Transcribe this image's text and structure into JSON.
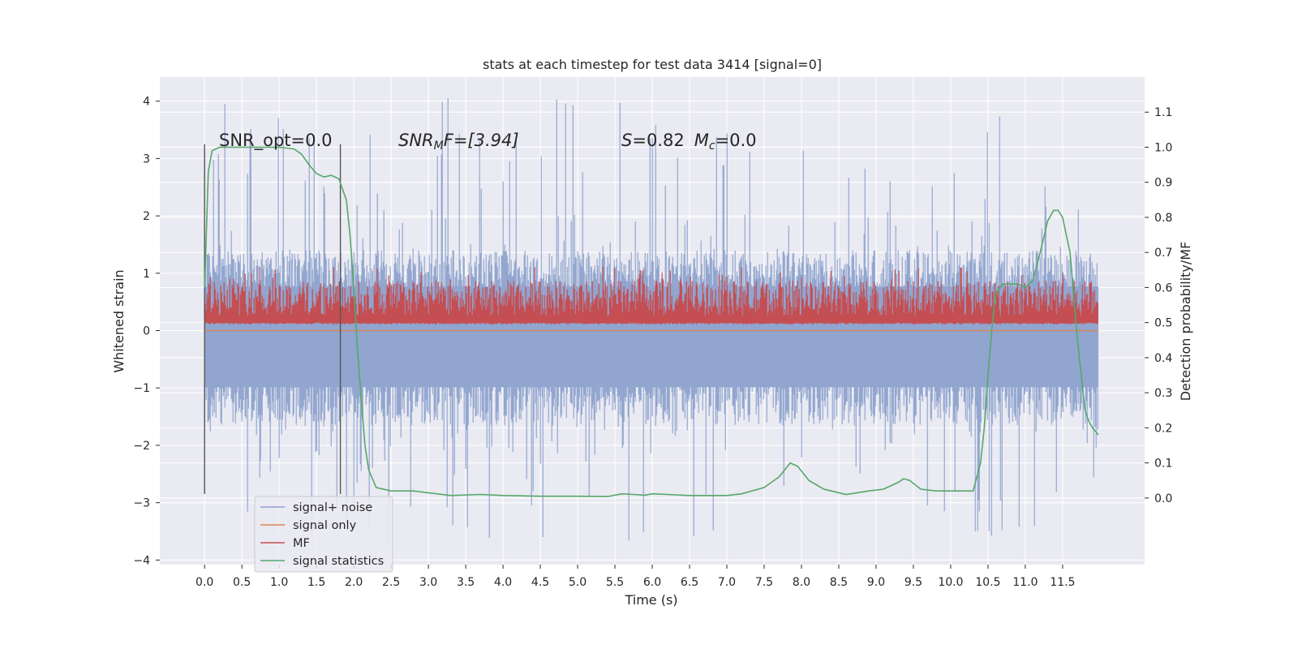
{
  "chart_data": {
    "type": "line",
    "title": "stats at each timestep for test data 3414 [signal=0]",
    "xlabel": "Time (s)",
    "ylabel_left": "Whitened strain",
    "ylabel_right": "Detection probability/MF",
    "xlim": [
      -0.6,
      12.6
    ],
    "ylim_left": [
      -4.08,
      4.42
    ],
    "ylim_right": [
      -0.19,
      1.2
    ],
    "x_ticks": [
      "0.0",
      "0.5",
      "1.0",
      "1.5",
      "2.0",
      "2.5",
      "3.0",
      "3.5",
      "4.0",
      "4.5",
      "5.0",
      "5.5",
      "6.0",
      "6.5",
      "7.0",
      "7.5",
      "8.0",
      "8.5",
      "9.0",
      "9.5",
      "10.0",
      "10.5",
      "11.0",
      "11.5"
    ],
    "y_ticks_left": [
      "−4",
      "−3",
      "−2",
      "−1",
      "0",
      "1",
      "2",
      "3",
      "4"
    ],
    "y_ticks_right": [
      "0.0",
      "0.1",
      "0.2",
      "0.3",
      "0.4",
      "0.5",
      "0.6",
      "0.7",
      "0.8",
      "0.9",
      "1.0",
      "1.1"
    ],
    "grid": true,
    "legend_position": "lower-left",
    "annotations": {
      "snr_opt": "SNR_opt=0.0",
      "snr_mf_prefix": "SNR",
      "snr_mf_sub": "M",
      "snr_mf_suffix": "F=[3.94]",
      "s_label": "S",
      "s_value": "=0.82",
      "mc_label": "M",
      "mc_sub": "c",
      "mc_value": "=0.0"
    },
    "vertical_lines_x": [
      0.0,
      1.82
    ],
    "series": [
      {
        "name": "signal+ noise",
        "color": "#8da2cc",
        "axis": "left",
        "x_range": [
          0.0,
          11.98
        ],
        "envelope": {
          "typical_upper": 1.4,
          "typical_lower": -1.65,
          "spike_max": 4.1,
          "spike_min": -3.7
        }
      },
      {
        "name": "signal only",
        "color": "#dd8452",
        "axis": "left",
        "values_constant": 0.0
      },
      {
        "name": "MF",
        "color": "#c44e52",
        "axis": "right",
        "x_range": [
          0.0,
          11.98
        ],
        "envelope": {
          "base": 0.5,
          "typical_peak": 0.62,
          "spike_max": 0.66
        }
      },
      {
        "name": "signal statistics",
        "color": "#55a868",
        "axis": "right",
        "x": [
          0.0,
          0.05,
          0.1,
          0.2,
          0.3,
          0.5,
          0.7,
          1.0,
          1.2,
          1.3,
          1.4,
          1.5,
          1.6,
          1.7,
          1.8,
          1.9,
          1.95,
          2.0,
          2.05,
          2.1,
          2.15,
          2.2,
          2.3,
          2.5,
          2.8,
          3.0,
          3.3,
          3.7,
          4.0,
          4.5,
          5.0,
          5.4,
          5.6,
          5.75,
          5.9,
          6.0,
          6.2,
          6.5,
          7.0,
          7.2,
          7.5,
          7.7,
          7.85,
          7.95,
          8.1,
          8.3,
          8.6,
          8.9,
          9.1,
          9.3,
          9.37,
          9.45,
          9.6,
          9.8,
          10.0,
          10.3,
          10.4,
          10.45,
          10.5,
          10.55,
          10.6,
          10.7,
          10.9,
          11.0,
          11.1,
          11.2,
          11.3,
          11.38,
          11.44,
          11.5,
          11.6,
          11.7,
          11.75,
          11.8,
          11.85,
          11.9,
          11.98
        ],
        "values": [
          0.6,
          0.93,
          0.99,
          1.0,
          1.0,
          1.0,
          1.0,
          1.0,
          0.995,
          0.98,
          0.95,
          0.925,
          0.915,
          0.92,
          0.91,
          0.85,
          0.75,
          0.6,
          0.42,
          0.28,
          0.15,
          0.08,
          0.03,
          0.02,
          0.02,
          0.015,
          0.007,
          0.01,
          0.007,
          0.005,
          0.005,
          0.004,
          0.012,
          0.01,
          0.008,
          0.012,
          0.01,
          0.007,
          0.007,
          0.012,
          0.03,
          0.06,
          0.1,
          0.09,
          0.05,
          0.025,
          0.01,
          0.02,
          0.025,
          0.045,
          0.055,
          0.05,
          0.025,
          0.02,
          0.02,
          0.02,
          0.1,
          0.2,
          0.35,
          0.48,
          0.58,
          0.61,
          0.61,
          0.6,
          0.62,
          0.7,
          0.79,
          0.82,
          0.82,
          0.8,
          0.7,
          0.45,
          0.35,
          0.25,
          0.22,
          0.2,
          0.18
        ]
      }
    ]
  }
}
